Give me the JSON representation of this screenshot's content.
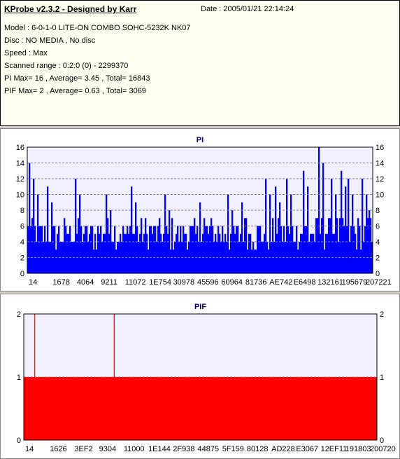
{
  "header": {
    "title": "KProbe v2.3.2 - Designed by Karr",
    "date": "Date : 2005/01/21 22:14:24",
    "lines": [
      "Model : 6-0-1-0 LITE-ON COMBO SOHC-5232K NK07",
      "Disc : NO MEDIA , No disc",
      "Speed : Max",
      "Scanned range : 0:2:0 (0) - 2299370",
      "PI Max= 16 , Average= 3.45 , Total= 16843",
      "PIF Max= 2 , Average= 0.63 , Total= 3069"
    ]
  },
  "colors": {
    "pi_fill": "#0000ff",
    "pif_fill": "#ff0000",
    "plot_bg": "#f0f0ff",
    "grid": "#808080"
  },
  "chart_data": [
    {
      "type": "bar",
      "title": "PI",
      "ylim": [
        0,
        16
      ],
      "yticks": [
        0,
        2,
        4,
        6,
        8,
        10,
        12,
        14,
        16
      ],
      "xtick_labels": [
        "14",
        "1678",
        "4064",
        "9211",
        "11072",
        "1E754",
        "30978",
        "45596",
        "60964",
        "81736",
        "AE742",
        "E6498",
        "132161",
        "195679",
        "207221"
      ],
      "grid": "horizontal dashed",
      "typical_range": [
        3,
        7
      ],
      "peaks": [
        {
          "pos": 0.005,
          "value": 14
        },
        {
          "pos": 0.02,
          "value": 12
        },
        {
          "pos": 0.06,
          "value": 11
        },
        {
          "pos": 0.14,
          "value": 12
        },
        {
          "pos": 0.23,
          "value": 10
        },
        {
          "pos": 0.3,
          "value": 11
        },
        {
          "pos": 0.4,
          "value": 10
        },
        {
          "pos": 0.5,
          "value": 9
        },
        {
          "pos": 0.58,
          "value": 10
        },
        {
          "pos": 0.62,
          "value": 9
        },
        {
          "pos": 0.69,
          "value": 12
        },
        {
          "pos": 0.72,
          "value": 11
        },
        {
          "pos": 0.75,
          "value": 12
        },
        {
          "pos": 0.8,
          "value": 13
        },
        {
          "pos": 0.845,
          "value": 16
        },
        {
          "pos": 0.88,
          "value": 12
        },
        {
          "pos": 0.91,
          "value": 13
        },
        {
          "pos": 0.93,
          "value": 12
        },
        {
          "pos": 0.97,
          "value": 12
        },
        {
          "pos": 0.99,
          "value": 8
        }
      ]
    },
    {
      "type": "bar",
      "title": "PIF",
      "ylim": [
        0,
        2
      ],
      "yticks": [
        0,
        1,
        2
      ],
      "xtick_labels": [
        "14",
        "1626",
        "3EF2",
        "9304",
        "11000",
        "1E144",
        "2F938",
        "44875",
        "5F159",
        "80128",
        "AD228",
        "E3067",
        "12EF11",
        "191803",
        "200720"
      ],
      "grid": "horizontal dashed",
      "baseline_value": 1,
      "spikes": [
        {
          "pos": 0.03,
          "value": 2
        },
        {
          "pos": 0.255,
          "value": 2
        }
      ]
    }
  ]
}
